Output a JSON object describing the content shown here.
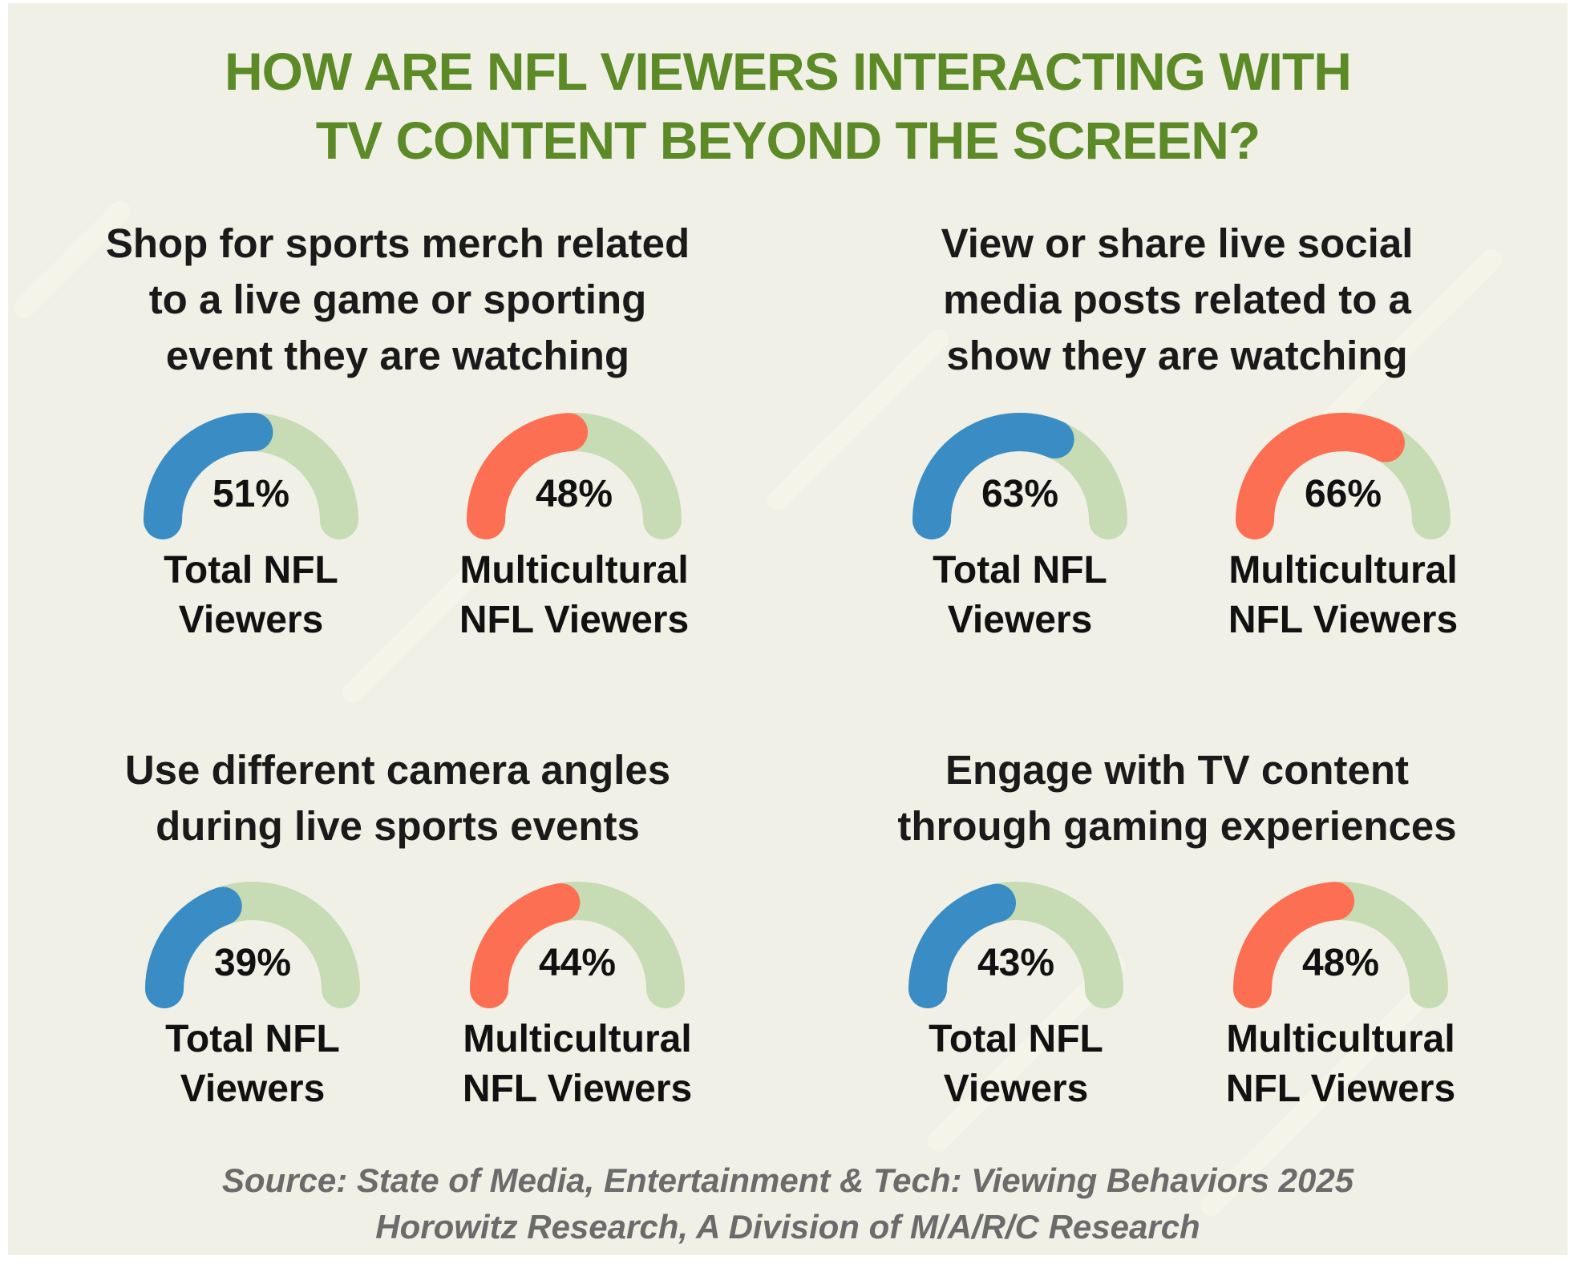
{
  "title": [
    "HOW ARE NFL VIEWERS INTERACTING WITH",
    "TV CONTENT BEYOND THE SCREEN?"
  ],
  "colors": {
    "title": "#5b8a26",
    "total": "#3a8cc4",
    "multicultural": "#fd6f52",
    "track": "#c7dcb4",
    "background": "#f0f0e6"
  },
  "chart_data": [
    {
      "type": "gauge",
      "title": [
        "Shop for sports merch related",
        "to a live game or sporting",
        "event they are watching"
      ],
      "series": [
        {
          "name": [
            "Total NFL",
            "Viewers"
          ],
          "value": 51,
          "display": "51%",
          "color": "#3a8cc4"
        },
        {
          "name": [
            "Multicultural",
            "NFL Viewers"
          ],
          "value": 48,
          "display": "48%",
          "color": "#fd6f52"
        }
      ]
    },
    {
      "type": "gauge",
      "title": [
        "View or share live social",
        "media posts related to a",
        "show they are watching"
      ],
      "series": [
        {
          "name": [
            "Total NFL",
            "Viewers"
          ],
          "value": 63,
          "display": "63%",
          "color": "#3a8cc4"
        },
        {
          "name": [
            "Multicultural",
            "NFL Viewers"
          ],
          "value": 66,
          "display": "66%",
          "color": "#fd6f52"
        }
      ]
    },
    {
      "type": "gauge",
      "title": [
        "Use different camera angles",
        "during live sports events"
      ],
      "series": [
        {
          "name": [
            "Total NFL",
            "Viewers"
          ],
          "value": 39,
          "display": "39%",
          "color": "#3a8cc4"
        },
        {
          "name": [
            "Multicultural",
            "NFL Viewers"
          ],
          "value": 44,
          "display": "44%",
          "color": "#fd6f52"
        }
      ]
    },
    {
      "type": "gauge",
      "title": [
        "Engage with TV content",
        "through gaming experiences"
      ],
      "series": [
        {
          "name": [
            "Total NFL",
            "Viewers"
          ],
          "value": 43,
          "display": "43%",
          "color": "#3a8cc4"
        },
        {
          "name": [
            "Multicultural",
            "NFL Viewers"
          ],
          "value": 48,
          "display": "48%",
          "color": "#fd6f52"
        }
      ]
    }
  ],
  "source": [
    "Source: State of Media, Entertainment & Tech: Viewing Behaviors 2025",
    "Horowitz Research, A Division of M/A/R/C Research"
  ]
}
